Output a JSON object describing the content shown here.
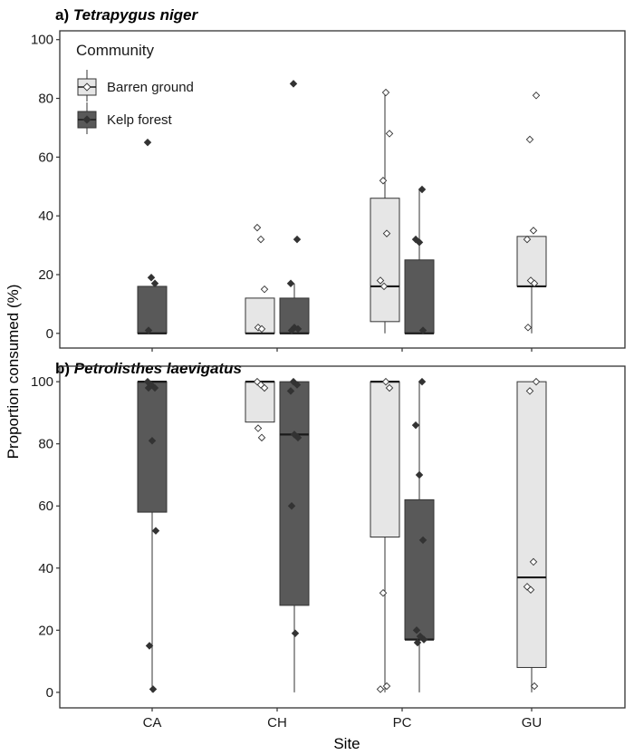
{
  "chart_data": {
    "type": "box",
    "xlabel": "Site",
    "ylabel": "Proportion consumed (%)",
    "categories": [
      "CA",
      "CH",
      "PC",
      "GU"
    ],
    "legend": {
      "title": "Community",
      "position": "top-left",
      "entries": [
        {
          "name": "Barren ground",
          "color": "#e6e6e6"
        },
        {
          "name": "Kelp forest",
          "color": "#595959"
        }
      ]
    },
    "panels": [
      {
        "title_prefix": "a) ",
        "title_species": "Tetrapygus niger",
        "ylim": [
          -5,
          103
        ],
        "yticks": [
          0,
          20,
          40,
          60,
          80,
          100
        ],
        "boxes": [
          {
            "site": "CA",
            "community": "Kelp forest",
            "min": 0,
            "q1": 0,
            "median": 0,
            "q3": 16,
            "max": 16,
            "points": [
              65,
              19,
              17,
              1
            ]
          },
          {
            "site": "CH",
            "community": "Barren ground",
            "min": 0,
            "q1": 0,
            "median": 0,
            "q3": 12,
            "max": 12,
            "points": [
              36,
              32,
              15,
              2,
              1.5
            ]
          },
          {
            "site": "CH",
            "community": "Kelp forest",
            "min": 0,
            "q1": 0,
            "median": 0,
            "q3": 12,
            "max": 17,
            "points": [
              85,
              32,
              17,
              2,
              1.5,
              1
            ]
          },
          {
            "site": "PC",
            "community": "Barren ground",
            "min": 0,
            "q1": 4,
            "median": 16,
            "q3": 46,
            "max": 82,
            "points": [
              82,
              68,
              52,
              34,
              18,
              16
            ]
          },
          {
            "site": "PC",
            "community": "Kelp forest",
            "min": 0,
            "q1": 0,
            "median": 0,
            "q3": 25,
            "max": 49,
            "points": [
              49,
              32,
              31,
              1
            ]
          },
          {
            "site": "GU",
            "community": "Barren ground",
            "min": 0,
            "q1": 16,
            "median": 16,
            "q3": 33,
            "max": 33,
            "points": [
              81,
              66,
              35,
              32,
              18,
              17,
              2
            ]
          }
        ]
      },
      {
        "title_prefix": "b) ",
        "title_species": "Petrolisthes laevigatus",
        "ylim": [
          -5,
          105
        ],
        "yticks": [
          0,
          20,
          40,
          60,
          80,
          100
        ],
        "boxes": [
          {
            "site": "CA",
            "community": "Kelp forest",
            "min": 0,
            "q1": 58,
            "median": 100,
            "q3": 100,
            "max": 100,
            "points": [
              100,
              99,
              98,
              98,
              81,
              52,
              15,
              1
            ]
          },
          {
            "site": "CH",
            "community": "Barren ground",
            "min": 87,
            "q1": 87,
            "median": 100,
            "q3": 100,
            "max": 100,
            "points": [
              100,
              99,
              98,
              85,
              82
            ]
          },
          {
            "site": "CH",
            "community": "Kelp forest",
            "min": 0,
            "q1": 28,
            "median": 83,
            "q3": 100,
            "max": 100,
            "points": [
              100,
              99,
              97,
              83,
              82,
              60,
              19
            ]
          },
          {
            "site": "PC",
            "community": "Barren ground",
            "min": 0,
            "q1": 50,
            "median": 100,
            "q3": 100,
            "max": 100,
            "points": [
              100,
              98,
              32,
              2,
              1
            ]
          },
          {
            "site": "PC",
            "community": "Kelp forest",
            "min": 0,
            "q1": 17,
            "median": 17,
            "q3": 62,
            "max": 100,
            "points": [
              100,
              86,
              70,
              49,
              20,
              18,
              17,
              16
            ]
          },
          {
            "site": "GU",
            "community": "Barren ground",
            "min": 0,
            "q1": 8,
            "median": 37,
            "q3": 100,
            "max": 100,
            "points": [
              100,
              97,
              42,
              34,
              33,
              2
            ]
          }
        ]
      }
    ],
    "grid": false
  }
}
